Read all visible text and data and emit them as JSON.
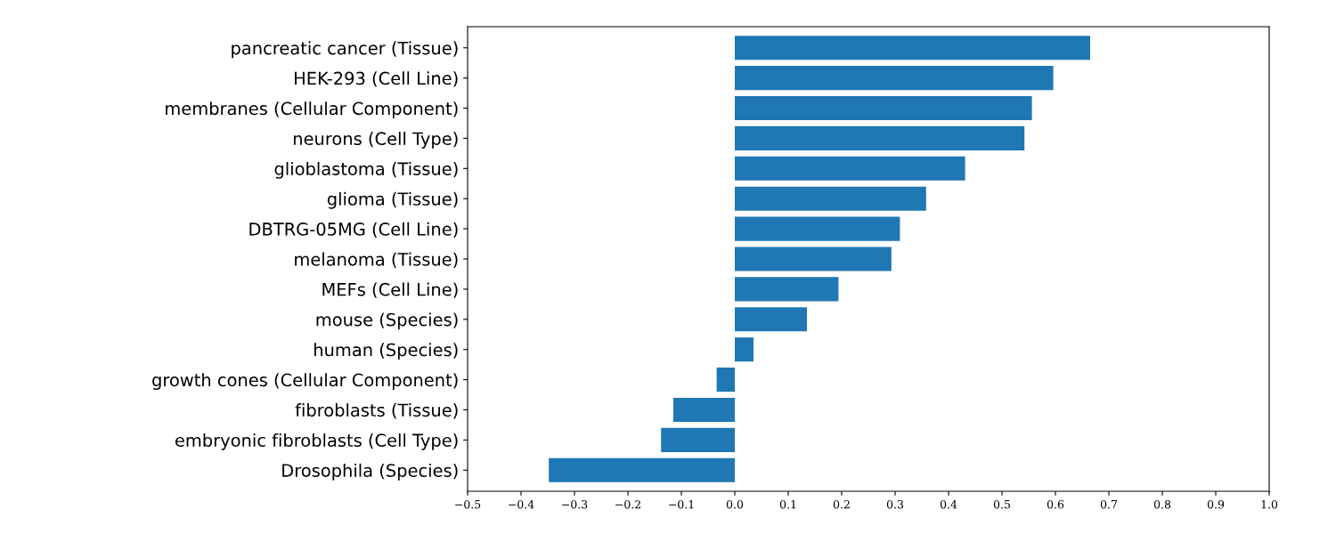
{
  "chart_data": {
    "type": "bar",
    "orientation": "horizontal",
    "categories": [
      "pancreatic cancer (Tissue)",
      "HEK-293 (Cell Line)",
      "membranes (Cellular Component)",
      "neurons (Cell Type)",
      "glioblastoma (Tissue)",
      "glioma (Tissue)",
      "DBTRG-05MG (Cell Line)",
      "melanoma (Tissue)",
      "MEFs (Cell Line)",
      "mouse (Species)",
      "human (Species)",
      "growth cones (Cellular Component)",
      "fibroblasts (Tissue)",
      "embryonic fibroblasts (Cell Type)",
      "Drosophila (Species)"
    ],
    "values": [
      0.665,
      0.596,
      0.556,
      0.542,
      0.431,
      0.358,
      0.309,
      0.293,
      0.194,
      0.135,
      0.035,
      -0.034,
      -0.115,
      -0.138,
      -0.348
    ],
    "color": "#1f77b4",
    "xlim": [
      -0.5,
      1.0
    ],
    "xticks": [
      {
        "value": -0.5,
        "label": "−0.5"
      },
      {
        "value": -0.4,
        "label": "−0.4"
      },
      {
        "value": -0.3,
        "label": "−0.3"
      },
      {
        "value": -0.2,
        "label": "−0.2"
      },
      {
        "value": -0.1,
        "label": "−0.1"
      },
      {
        "value": 0.0,
        "label": "0.0"
      },
      0.1,
      0.2,
      0.3,
      0.4,
      0.5,
      0.6,
      0.7,
      0.8,
      0.9,
      {
        "value": 1.0,
        "label": "1.0"
      }
    ],
    "grid": false
  }
}
